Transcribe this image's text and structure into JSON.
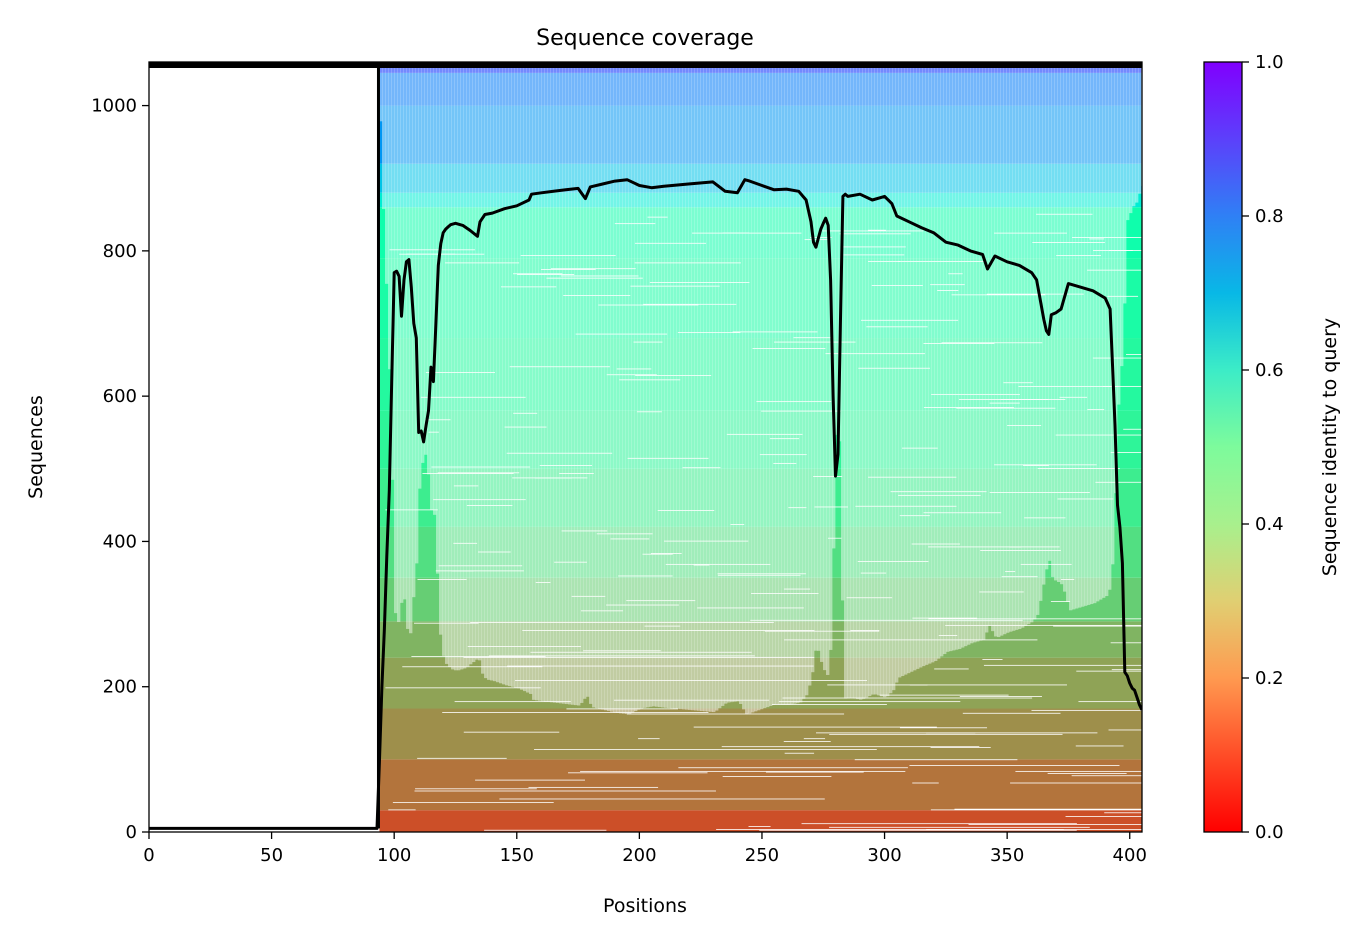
{
  "chart_data": {
    "type": "heatmap",
    "title": "Sequence coverage",
    "xlabel": "Positions",
    "ylabel": "Sequences",
    "xlim": [
      0,
      405
    ],
    "ylim": [
      0,
      1060
    ],
    "x_ticks": [
      "0",
      "50",
      "100",
      "150",
      "200",
      "250",
      "300",
      "350",
      "400"
    ],
    "y_ticks": [
      "0",
      "200",
      "400",
      "600",
      "800",
      "1000"
    ],
    "grid": false,
    "colorbar": {
      "label": "Sequence identity to query",
      "colormap": "rainbow_r",
      "range": [
        0,
        1
      ],
      "ticks": [
        "0.0",
        "0.2",
        "0.4",
        "0.6",
        "0.8",
        "1.0"
      ]
    },
    "alignment": {
      "query_start": 94,
      "query_end": 405,
      "total_sequences": 1060
    },
    "identity_bands": [
      {
        "from": 0,
        "to": 30,
        "identity": 0.1
      },
      {
        "from": 30,
        "to": 100,
        "identity": 0.15
      },
      {
        "from": 100,
        "to": 170,
        "identity": 0.19
      },
      {
        "from": 170,
        "to": 240,
        "identity": 0.22
      },
      {
        "from": 240,
        "to": 290,
        "identity": 0.25
      },
      {
        "from": 290,
        "to": 350,
        "identity": 0.3
      },
      {
        "from": 350,
        "to": 420,
        "identity": 0.34
      },
      {
        "from": 420,
        "to": 500,
        "identity": 0.38
      },
      {
        "from": 500,
        "to": 580,
        "identity": 0.41
      },
      {
        "from": 580,
        "to": 680,
        "identity": 0.43
      },
      {
        "from": 680,
        "to": 790,
        "identity": 0.45
      },
      {
        "from": 790,
        "to": 860,
        "identity": 0.47
      },
      {
        "from": 860,
        "to": 880,
        "identity": 0.62
      },
      {
        "from": 880,
        "to": 920,
        "identity": 0.72
      },
      {
        "from": 920,
        "to": 1000,
        "identity": 0.8
      },
      {
        "from": 1000,
        "to": 1045,
        "identity": 0.84
      },
      {
        "from": 1045,
        "to": 1060,
        "identity": 0.95
      }
    ],
    "series": [
      {
        "type": "line",
        "color": "#000000",
        "x": [
          0,
          93,
          94,
          95,
          96,
          97,
          98,
          99,
          100,
          101,
          102,
          103,
          104,
          105,
          106,
          107,
          108,
          109,
          110,
          111,
          112,
          113,
          114,
          115,
          116,
          117,
          118,
          119,
          120,
          121,
          122,
          123,
          125,
          128,
          131,
          134,
          135,
          137,
          140,
          145,
          150,
          155,
          156,
          160,
          165,
          170,
          175,
          178,
          180,
          185,
          190,
          195,
          200,
          205,
          210,
          220,
          230,
          235,
          240,
          243,
          245,
          250,
          255,
          260,
          265,
          268,
          270,
          271,
          272,
          274,
          275,
          276,
          277,
          278,
          279,
          280,
          281,
          282,
          283,
          284,
          285,
          290,
          295,
          300,
          303,
          305,
          310,
          315,
          320,
          325,
          330,
          335,
          340,
          342,
          345,
          350,
          355,
          360,
          362,
          365,
          366,
          367,
          368,
          370,
          372,
          375,
          380,
          385,
          390,
          392,
          393,
          394,
          395,
          396,
          397,
          398,
          399,
          400,
          401,
          402,
          403,
          404,
          405
        ],
        "y": [
          5,
          5,
          100,
          200,
          280,
          380,
          470,
          620,
          770,
          772,
          765,
          710,
          760,
          785,
          788,
          750,
          700,
          680,
          550,
          552,
          537,
          560,
          580,
          640,
          620,
          700,
          780,
          810,
          825,
          830,
          833,
          836,
          838,
          835,
          828,
          820,
          840,
          850,
          852,
          858,
          862,
          870,
          878,
          880,
          882,
          884,
          886,
          872,
          888,
          892,
          896,
          898,
          890,
          887,
          889,
          892,
          895,
          882,
          880,
          898,
          896,
          890,
          884,
          885,
          882,
          870,
          840,
          812,
          805,
          830,
          838,
          845,
          835,
          760,
          600,
          490,
          520,
          700,
          875,
          878,
          875,
          878,
          870,
          875,
          865,
          848,
          840,
          832,
          825,
          812,
          808,
          800,
          795,
          775,
          793,
          785,
          780,
          770,
          760,
          705,
          690,
          685,
          712,
          715,
          720,
          755,
          750,
          745,
          735,
          720,
          640,
          560,
          450,
          420,
          370,
          220,
          215,
          205,
          198,
          195,
          185,
          175,
          168
        ]
      }
    ]
  }
}
